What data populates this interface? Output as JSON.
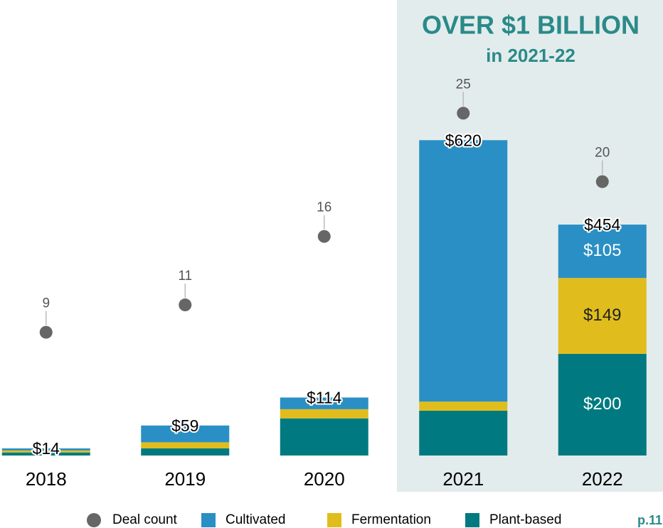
{
  "chart_data": {
    "type": "bar",
    "title": "OVER $1 BILLION",
    "subtitle": "in 2021-22",
    "categories": [
      "2018",
      "2019",
      "2020",
      "2021",
      "2022"
    ],
    "series": [
      {
        "name": "Cultivated",
        "color": "#2a8fc4",
        "values": [
          4,
          33,
          23,
          514,
          105
        ],
        "value_labels": [
          null,
          null,
          null,
          null,
          "$105"
        ]
      },
      {
        "name": "Fermentation",
        "color": "#e0bd1c",
        "values": [
          4,
          12,
          18,
          18,
          149
        ],
        "value_labels": [
          null,
          null,
          null,
          null,
          "$149"
        ]
      },
      {
        "name": "Plant-based",
        "color": "#007a80",
        "values": [
          6,
          14,
          73,
          88,
          200
        ],
        "value_labels": [
          null,
          null,
          null,
          null,
          "$200"
        ]
      }
    ],
    "totals": [
      14,
      59,
      114,
      620,
      454
    ],
    "total_labels": [
      "$14",
      "$59",
      "$114",
      "$620",
      "$454"
    ],
    "deal_count": {
      "name": "Deal count",
      "color": "#666666",
      "axis": "y2",
      "values": [
        9,
        11,
        16,
        25,
        20
      ]
    },
    "ylim": [
      0,
      700
    ],
    "y2lim": [
      0,
      26
    ],
    "page_label": "p.11"
  }
}
